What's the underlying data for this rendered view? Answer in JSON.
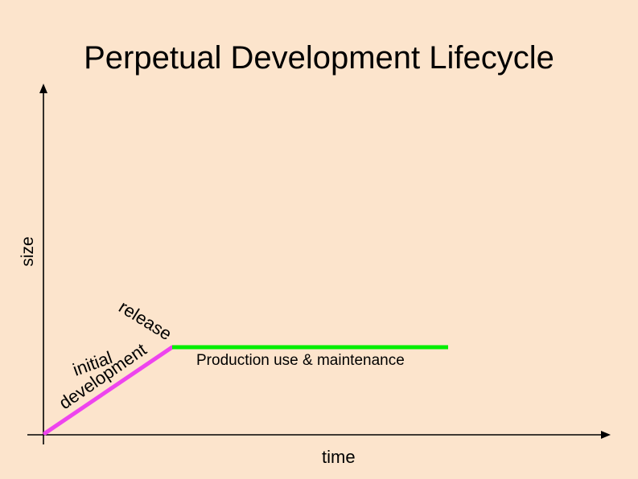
{
  "title": "Perpetual Development Lifecycle",
  "axes": {
    "y_label": "size",
    "x_label": "time"
  },
  "phases": [
    {
      "name": "initial development",
      "label_line1": "initial",
      "label_line2": "development",
      "color": "#ee44ee"
    },
    {
      "name": "release",
      "label": "release"
    },
    {
      "name": "production",
      "label": "Production use & maintenance",
      "color": "#00ee00"
    }
  ],
  "colors": {
    "background": "#fce4cc",
    "axis": "#000000"
  }
}
